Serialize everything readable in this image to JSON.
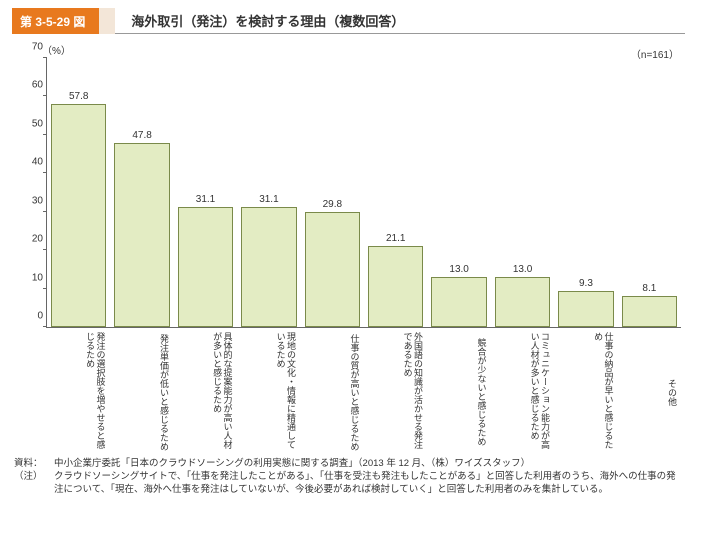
{
  "header": {
    "fig_tag": "第 3-5-29 図",
    "fig_title": "海外取引（発注）を検討する理由（複数回答）"
  },
  "chart": {
    "type": "bar",
    "unit_label": "（%）",
    "n_label": "（n=161）",
    "ylim_max": 70,
    "ytick_step": 10,
    "yticks": [
      0,
      10,
      20,
      30,
      40,
      50,
      60,
      70
    ],
    "bar_fill": "#e3ecc3",
    "bar_border": "#7a8a4a",
    "axis_color": "#666666",
    "background_color": "#ffffff",
    "value_fontsize": 10,
    "label_fontsize": 9,
    "bars": [
      {
        "label": "発注の選択肢を増やせると感じるため",
        "value": 57.8
      },
      {
        "label": "発注単価が低いと感じるため",
        "value": 47.8
      },
      {
        "label": "具体的な提案能力が高い人材が多いと感じるため",
        "value": 31.1
      },
      {
        "label": "現地の文化・情報に精通しているため",
        "value": 31.1
      },
      {
        "label": "仕事の質が高いと感じるため",
        "value": 29.8
      },
      {
        "label": "外国語の知識が活かせる発注であるため",
        "value": 21.1
      },
      {
        "label": "競合が少ないと感じるため",
        "value": 13.0
      },
      {
        "label": "コミュニケーション能力が高い人材が多いと感じるため",
        "value": 13.0
      },
      {
        "label": "仕事の納品が早いと感じるため",
        "value": 9.3
      },
      {
        "label": "その他",
        "value": 8.1
      }
    ]
  },
  "footnotes": {
    "source_tag": "資料：",
    "source_body": "中小企業庁委託「日本のクラウドソーシングの利用実態に関する調査」（2013 年 12 月、（株）ワイズスタッフ）",
    "note_tag": "（注）",
    "note_body": "クラウドソーシングサイトで、「仕事を発注したことがある」、「仕事を受注も発注もしたことがある」と回答した利用者のうち、海外への仕事の発注について、「現在、海外へ仕事を発注はしていないが、今後必要があれば検討していく」と回答した利用者のみを集計している。"
  }
}
